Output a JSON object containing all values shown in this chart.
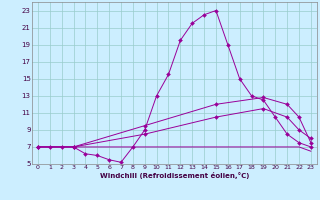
{
  "xlabel": "Windchill (Refroidissement éolien,°C)",
  "bg_color": "#cceeff",
  "grid_color": "#99cccc",
  "line_color": "#990099",
  "xlim": [
    -0.5,
    23.5
  ],
  "ylim": [
    5,
    24
  ],
  "yticks": [
    5,
    7,
    9,
    11,
    13,
    15,
    17,
    19,
    21,
    23
  ],
  "xticks": [
    0,
    1,
    2,
    3,
    4,
    5,
    6,
    7,
    8,
    9,
    10,
    11,
    12,
    13,
    14,
    15,
    16,
    17,
    18,
    19,
    20,
    21,
    22,
    23
  ],
  "line1_x": [
    0,
    1,
    2,
    3,
    4,
    5,
    6,
    7,
    8,
    9,
    10,
    11,
    12,
    13,
    14,
    15,
    16,
    17,
    18,
    19,
    20,
    21,
    22,
    23
  ],
  "line1_y": [
    7.0,
    7.0,
    7.0,
    7.0,
    6.2,
    6.0,
    5.5,
    5.2,
    7.0,
    9.0,
    13.0,
    15.5,
    19.5,
    21.5,
    22.5,
    23.0,
    19.0,
    15.0,
    13.0,
    12.5,
    10.5,
    8.5,
    7.5,
    7.0
  ],
  "line2_x": [
    0,
    1,
    2,
    3,
    4,
    5,
    6,
    7,
    8,
    9,
    10,
    11,
    12,
    13,
    14,
    15,
    16,
    17,
    18,
    19,
    20,
    21,
    22,
    23
  ],
  "line2_y": [
    7.0,
    7.0,
    7.0,
    7.0,
    7.0,
    7.0,
    7.0,
    7.0,
    7.0,
    7.0,
    7.0,
    7.0,
    7.0,
    7.0,
    7.0,
    7.0,
    7.0,
    7.0,
    7.0,
    7.0,
    7.0,
    7.0,
    7.0,
    6.5
  ],
  "line3_x": [
    0,
    3,
    9,
    15,
    19,
    21,
    22,
    23
  ],
  "line3_y": [
    7.0,
    7.0,
    8.5,
    10.5,
    11.5,
    10.5,
    9.0,
    8.0
  ],
  "line4_x": [
    0,
    3,
    9,
    15,
    19,
    21,
    22,
    23
  ],
  "line4_y": [
    7.0,
    7.0,
    9.5,
    12.0,
    12.8,
    12.0,
    10.5,
    7.5
  ]
}
